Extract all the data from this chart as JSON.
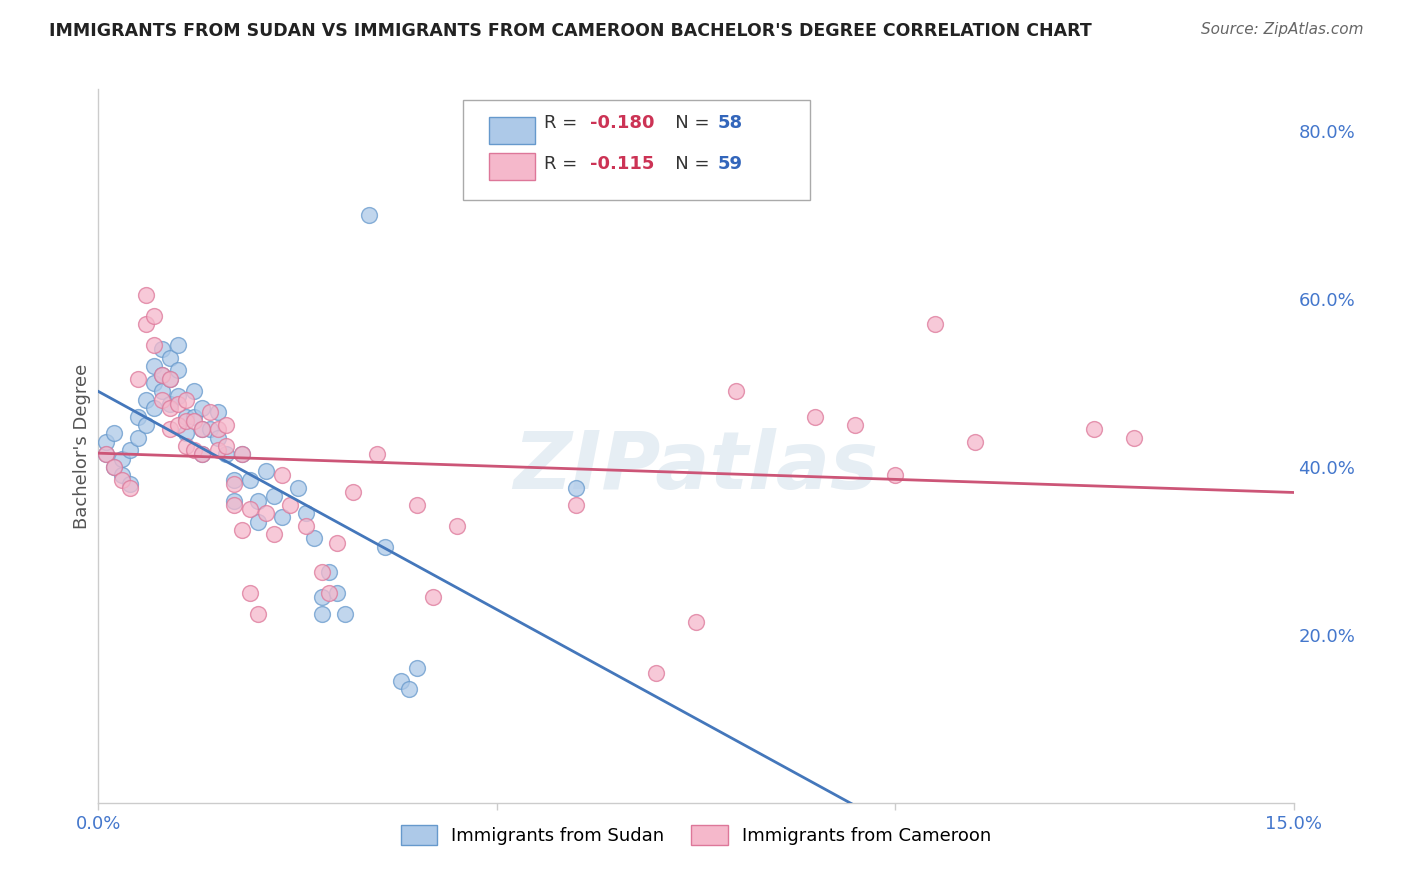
{
  "title": "IMMIGRANTS FROM SUDAN VS IMMIGRANTS FROM CAMEROON BACHELOR'S DEGREE CORRELATION CHART",
  "source": "Source: ZipAtlas.com",
  "ylabel": "Bachelor's Degree",
  "xlim": [
    0.0,
    0.15
  ],
  "ylim": [
    0.0,
    0.85
  ],
  "sudan_color": "#adc9e8",
  "cameroon_color": "#f5b8cb",
  "sudan_edge_color": "#6699cc",
  "cameroon_edge_color": "#dd7799",
  "sudan_line_color": "#4477bb",
  "cameroon_line_color": "#cc5577",
  "sudan_R": -0.18,
  "sudan_N": 58,
  "cameroon_R": -0.115,
  "cameroon_N": 59,
  "watermark": "ZIPatlas",
  "legend_R_color": "#cc3355",
  "legend_N_color": "#3366bb",
  "grid_color": "#dddddd",
  "axis_label_color": "#4477cc",
  "sudan_points": [
    [
      0.001,
      0.415
    ],
    [
      0.001,
      0.43
    ],
    [
      0.002,
      0.4
    ],
    [
      0.002,
      0.44
    ],
    [
      0.003,
      0.41
    ],
    [
      0.003,
      0.39
    ],
    [
      0.004,
      0.38
    ],
    [
      0.004,
      0.42
    ],
    [
      0.005,
      0.435
    ],
    [
      0.005,
      0.46
    ],
    [
      0.006,
      0.45
    ],
    [
      0.006,
      0.48
    ],
    [
      0.007,
      0.52
    ],
    [
      0.007,
      0.5
    ],
    [
      0.007,
      0.47
    ],
    [
      0.008,
      0.54
    ],
    [
      0.008,
      0.51
    ],
    [
      0.008,
      0.49
    ],
    [
      0.009,
      0.53
    ],
    [
      0.009,
      0.505
    ],
    [
      0.009,
      0.475
    ],
    [
      0.01,
      0.545
    ],
    [
      0.01,
      0.515
    ],
    [
      0.01,
      0.485
    ],
    [
      0.011,
      0.46
    ],
    [
      0.011,
      0.44
    ],
    [
      0.012,
      0.49
    ],
    [
      0.012,
      0.46
    ],
    [
      0.013,
      0.47
    ],
    [
      0.013,
      0.445
    ],
    [
      0.013,
      0.415
    ],
    [
      0.014,
      0.445
    ],
    [
      0.015,
      0.465
    ],
    [
      0.015,
      0.435
    ],
    [
      0.016,
      0.415
    ],
    [
      0.017,
      0.385
    ],
    [
      0.017,
      0.36
    ],
    [
      0.018,
      0.415
    ],
    [
      0.019,
      0.385
    ],
    [
      0.02,
      0.36
    ],
    [
      0.02,
      0.335
    ],
    [
      0.021,
      0.395
    ],
    [
      0.022,
      0.365
    ],
    [
      0.023,
      0.34
    ],
    [
      0.025,
      0.375
    ],
    [
      0.026,
      0.345
    ],
    [
      0.027,
      0.315
    ],
    [
      0.028,
      0.245
    ],
    [
      0.028,
      0.225
    ],
    [
      0.029,
      0.275
    ],
    [
      0.03,
      0.25
    ],
    [
      0.031,
      0.225
    ],
    [
      0.034,
      0.7
    ],
    [
      0.036,
      0.305
    ],
    [
      0.038,
      0.145
    ],
    [
      0.039,
      0.135
    ],
    [
      0.04,
      0.16
    ],
    [
      0.06,
      0.375
    ]
  ],
  "cameroon_points": [
    [
      0.001,
      0.415
    ],
    [
      0.002,
      0.4
    ],
    [
      0.003,
      0.385
    ],
    [
      0.004,
      0.375
    ],
    [
      0.005,
      0.505
    ],
    [
      0.006,
      0.605
    ],
    [
      0.006,
      0.57
    ],
    [
      0.007,
      0.58
    ],
    [
      0.007,
      0.545
    ],
    [
      0.008,
      0.51
    ],
    [
      0.008,
      0.48
    ],
    [
      0.009,
      0.505
    ],
    [
      0.009,
      0.47
    ],
    [
      0.009,
      0.445
    ],
    [
      0.01,
      0.475
    ],
    [
      0.01,
      0.45
    ],
    [
      0.011,
      0.48
    ],
    [
      0.011,
      0.455
    ],
    [
      0.011,
      0.425
    ],
    [
      0.012,
      0.455
    ],
    [
      0.012,
      0.42
    ],
    [
      0.013,
      0.445
    ],
    [
      0.013,
      0.415
    ],
    [
      0.014,
      0.465
    ],
    [
      0.015,
      0.445
    ],
    [
      0.015,
      0.42
    ],
    [
      0.016,
      0.45
    ],
    [
      0.016,
      0.425
    ],
    [
      0.017,
      0.38
    ],
    [
      0.017,
      0.355
    ],
    [
      0.018,
      0.325
    ],
    [
      0.018,
      0.415
    ],
    [
      0.019,
      0.35
    ],
    [
      0.019,
      0.25
    ],
    [
      0.02,
      0.225
    ],
    [
      0.021,
      0.345
    ],
    [
      0.022,
      0.32
    ],
    [
      0.023,
      0.39
    ],
    [
      0.024,
      0.355
    ],
    [
      0.026,
      0.33
    ],
    [
      0.028,
      0.275
    ],
    [
      0.029,
      0.25
    ],
    [
      0.03,
      0.31
    ],
    [
      0.032,
      0.37
    ],
    [
      0.035,
      0.415
    ],
    [
      0.04,
      0.355
    ],
    [
      0.042,
      0.245
    ],
    [
      0.045,
      0.33
    ],
    [
      0.06,
      0.355
    ],
    [
      0.07,
      0.155
    ],
    [
      0.075,
      0.215
    ],
    [
      0.08,
      0.49
    ],
    [
      0.09,
      0.46
    ],
    [
      0.095,
      0.45
    ],
    [
      0.1,
      0.39
    ],
    [
      0.105,
      0.57
    ],
    [
      0.11,
      0.43
    ],
    [
      0.125,
      0.445
    ],
    [
      0.13,
      0.435
    ]
  ]
}
